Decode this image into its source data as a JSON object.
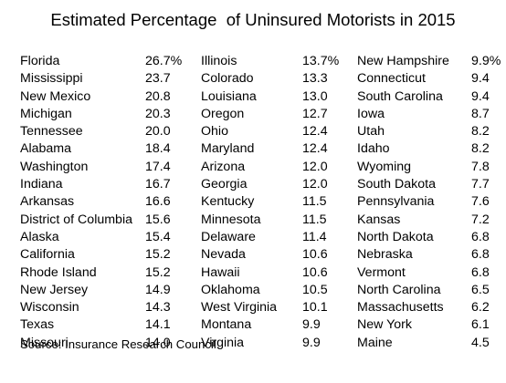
{
  "title": "Estimated Percentage  of Uninsured Motorists in 2015",
  "columns": [
    [
      {
        "state": "Florida",
        "value": "26.7%"
      },
      {
        "state": "Mississippi",
        "value": "23.7"
      },
      {
        "state": "New Mexico",
        "value": "20.8"
      },
      {
        "state": "Michigan",
        "value": "20.3"
      },
      {
        "state": "Tennessee",
        "value": "20.0"
      },
      {
        "state": "Alabama",
        "value": "18.4"
      },
      {
        "state": "Washington",
        "value": "17.4"
      },
      {
        "state": "Indiana",
        "value": "16.7"
      },
      {
        "state": "Arkansas",
        "value": "16.6"
      },
      {
        "state": "District of Columbia",
        "value": "15.6"
      },
      {
        "state": "Alaska",
        "value": "15.4"
      },
      {
        "state": "California",
        "value": "15.2"
      },
      {
        "state": "Rhode Island",
        "value": "15.2"
      },
      {
        "state": "New Jersey",
        "value": "14.9"
      },
      {
        "state": "Wisconsin",
        "value": "14.3"
      },
      {
        "state": "Texas",
        "value": "14.1"
      },
      {
        "state": "Missouri",
        "value": "14.0"
      }
    ],
    [
      {
        "state": "Illinois",
        "value": "13.7%"
      },
      {
        "state": "Colorado",
        "value": "13.3"
      },
      {
        "state": "Louisiana",
        "value": "13.0"
      },
      {
        "state": "Oregon",
        "value": "12.7"
      },
      {
        "state": "Ohio",
        "value": "12.4"
      },
      {
        "state": "Maryland",
        "value": "12.4"
      },
      {
        "state": "Arizona",
        "value": "12.0"
      },
      {
        "state": "Georgia",
        "value": "12.0"
      },
      {
        "state": "Kentucky",
        "value": "11.5"
      },
      {
        "state": "Minnesota",
        "value": "11.5"
      },
      {
        "state": "Delaware",
        "value": "11.4"
      },
      {
        "state": "Nevada",
        "value": "10.6"
      },
      {
        "state": "Hawaii",
        "value": "10.6"
      },
      {
        "state": "Oklahoma",
        "value": "10.5"
      },
      {
        "state": "West Virginia",
        "value": "10.1"
      },
      {
        "state": "Montana",
        "value": "9.9"
      },
      {
        "state": "Virginia",
        "value": "9.9"
      }
    ],
    [
      {
        "state": "New Hampshire",
        "value": "9.9%"
      },
      {
        "state": "Connecticut",
        "value": "9.4"
      },
      {
        "state": "South Carolina",
        "value": "9.4"
      },
      {
        "state": "Iowa",
        "value": "8.7"
      },
      {
        "state": "Utah",
        "value": "8.2"
      },
      {
        "state": "Idaho",
        "value": "8.2"
      },
      {
        "state": "Wyoming",
        "value": "7.8"
      },
      {
        "state": "South Dakota",
        "value": "7.7"
      },
      {
        "state": "Pennsylvania",
        "value": "7.6"
      },
      {
        "state": "Kansas",
        "value": "7.2"
      },
      {
        "state": "North Dakota",
        "value": "6.8"
      },
      {
        "state": "Nebraska",
        "value": "6.8"
      },
      {
        "state": "Vermont",
        "value": "6.8"
      },
      {
        "state": "North Carolina",
        "value": "6.5"
      },
      {
        "state": "Massachusetts",
        "value": "6.2"
      },
      {
        "state": "New York",
        "value": "6.1"
      },
      {
        "state": "Maine",
        "value": "4.5"
      }
    ]
  ],
  "source": "Source: Insurance Research Council."
}
